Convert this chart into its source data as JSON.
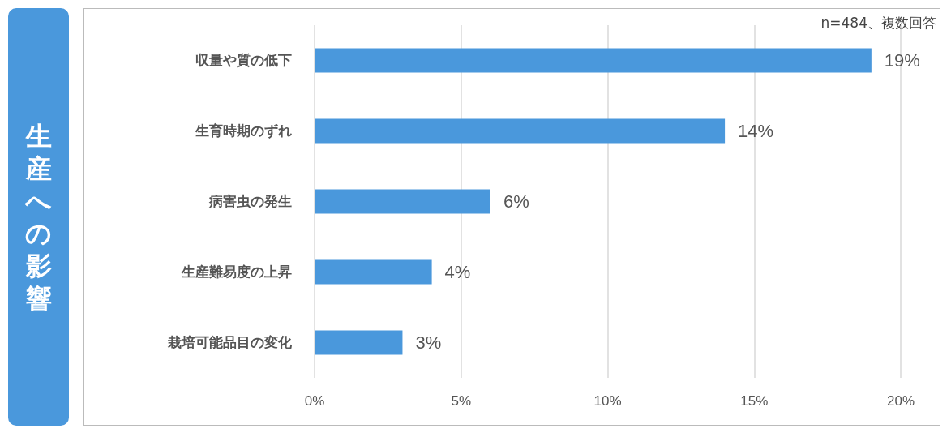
{
  "chart_data": {
    "type": "bar",
    "orientation": "horizontal",
    "title": "生産への影響",
    "annotations": [
      "n=484、複数回答"
    ],
    "categories": [
      "収量や質の低下",
      "生育時期のずれ",
      "病害虫の発生",
      "生産難易度の上昇",
      "栽培可能品目の変化"
    ],
    "values": [
      19,
      14,
      6,
      4,
      3
    ],
    "value_labels": [
      "19%",
      "14%",
      "6%",
      "4%",
      "3%"
    ],
    "color": "#4a98dc",
    "xlim": [
      0,
      20
    ],
    "xticks": [
      {
        "value": 0,
        "label": "0%"
      },
      {
        "value": 5,
        "label": "5%"
      },
      {
        "value": 10,
        "label": "10%"
      },
      {
        "value": 15,
        "label": "15%"
      },
      {
        "value": 20,
        "label": "20%"
      }
    ],
    "grid": "x"
  }
}
